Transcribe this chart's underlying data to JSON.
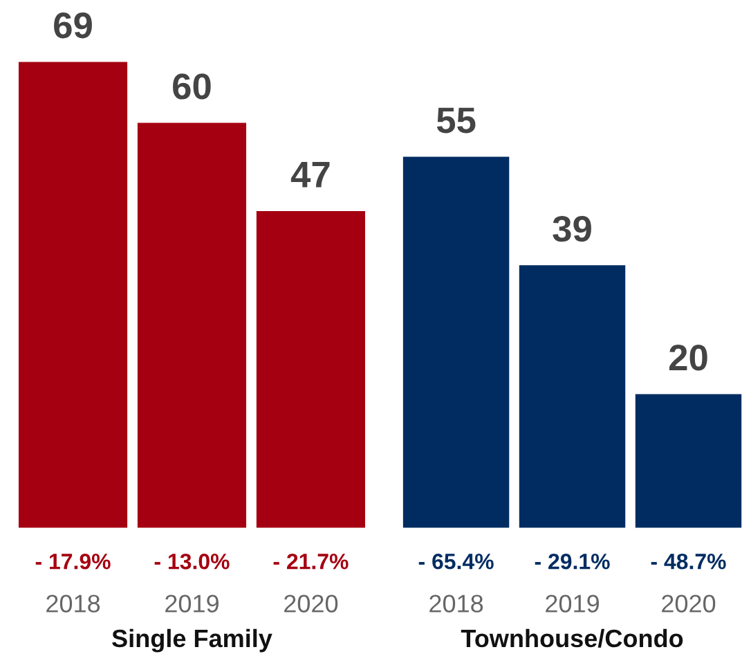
{
  "chart_data": [
    {
      "type": "bar",
      "xlabel": "Single Family",
      "categories": [
        "2018",
        "2019",
        "2020"
      ],
      "values": [
        69,
        60,
        47
      ],
      "color": "#a50011",
      "data_labels": true,
      "tick_labels": "x",
      "grid": false,
      "legend": false,
      "annotations": [
        "- 17.9%",
        "- 13.0%",
        "- 21.7%"
      ]
    },
    {
      "type": "bar",
      "xlabel": "Townhouse/Condo",
      "categories": [
        "2018",
        "2019",
        "2020"
      ],
      "values": [
        55,
        39,
        20
      ],
      "color": "#002c62",
      "data_labels": true,
      "tick_labels": "x",
      "grid": false,
      "legend": false,
      "annotations": [
        "- 65.4%",
        "- 29.1%",
        "- 48.7%"
      ]
    }
  ]
}
